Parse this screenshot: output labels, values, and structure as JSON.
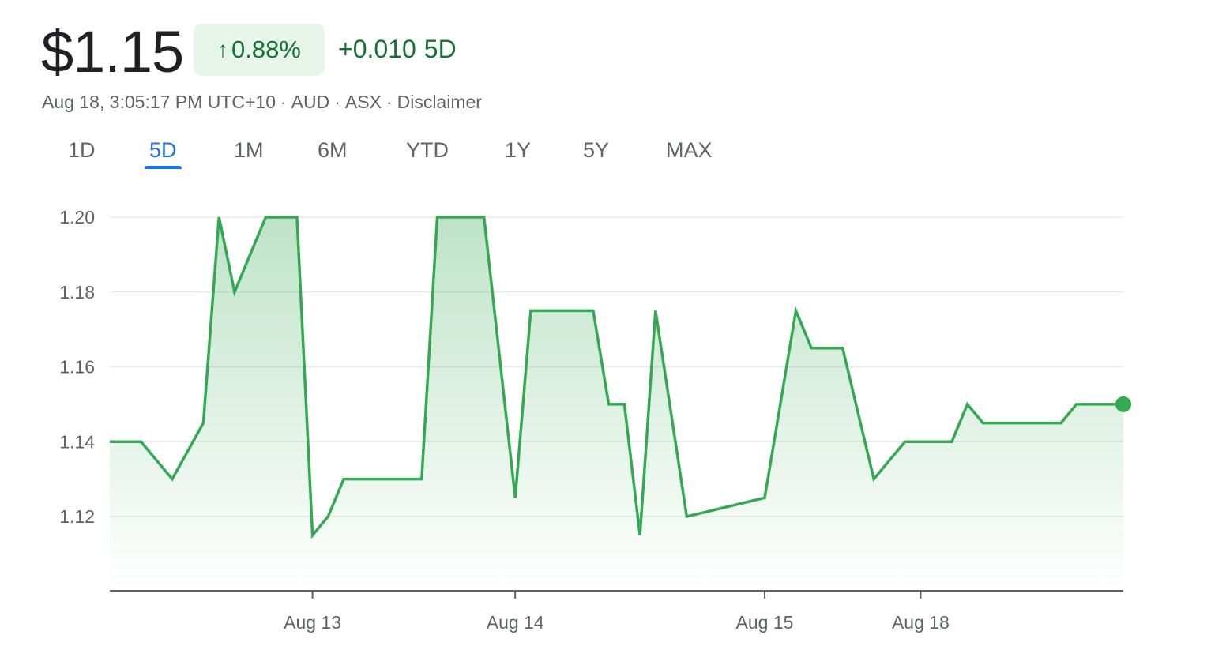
{
  "quote": {
    "price": "$1.15",
    "percent_change": "0.88%",
    "arrow_icon": "arrow-up-icon",
    "abs_change": "+0.010",
    "period": "5D",
    "timestamp": "Aug 18, 3:05:17 PM UTC+10",
    "currency": "AUD",
    "exchange": "ASX",
    "disclaimer": "Disclaimer",
    "separator": "·"
  },
  "tabs": [
    {
      "label": "1D"
    },
    {
      "label": "5D",
      "active": true
    },
    {
      "label": "1M"
    },
    {
      "label": "6M"
    },
    {
      "label": "YTD"
    },
    {
      "label": "1Y"
    },
    {
      "label": "5Y"
    },
    {
      "label": "MAX"
    }
  ],
  "colors": {
    "up_green": "#137333",
    "line_green": "#34a853",
    "badge_bg": "#e6f4ea",
    "tab_active": "#1a73e8",
    "muted_text": "#5f6368",
    "gridline": "#e8eaed"
  },
  "chart_data": {
    "type": "area",
    "ylim": [
      1.1,
      1.2
    ],
    "yticks": [
      "1.20",
      "1.18",
      "1.16",
      "1.14",
      "1.12"
    ],
    "ytick_values": [
      1.2,
      1.18,
      1.16,
      1.14,
      1.12
    ],
    "xticks": [
      {
        "label": "Aug 13",
        "index": 13
      },
      {
        "label": "Aug 14",
        "index": 26
      },
      {
        "label": "Aug 15",
        "index": 42
      },
      {
        "label": "Aug 18",
        "index": 52
      }
    ],
    "grid": true,
    "series": [
      {
        "values": [
          1.14,
          1.14,
          1.14,
          1.135,
          1.13,
          1.1375,
          1.145,
          1.2,
          1.18,
          1.19,
          1.2,
          1.2,
          1.2,
          1.115,
          1.12,
          1.13,
          1.13,
          1.13,
          1.13,
          1.13,
          1.13,
          1.2,
          1.2,
          1.2,
          1.2,
          1.1625,
          1.125,
          1.175,
          1.175,
          1.175,
          1.175,
          1.175,
          1.15,
          1.15,
          1.115,
          1.175,
          1.1475,
          1.12,
          1.121,
          1.122,
          1.123,
          1.124,
          1.125,
          1.15,
          1.175,
          1.165,
          1.165,
          1.165,
          1.1475,
          1.13,
          1.135,
          1.14,
          1.14,
          1.14,
          1.14,
          1.15,
          1.145,
          1.145,
          1.145,
          1.145,
          1.145,
          1.145,
          1.15,
          1.15,
          1.15,
          1.15
        ]
      }
    ]
  }
}
